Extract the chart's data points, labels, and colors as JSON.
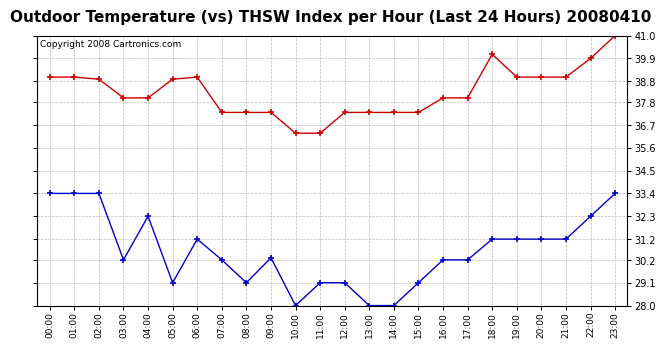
{
  "title": "Outdoor Temperature (vs) THSW Index per Hour (Last 24 Hours) 20080410",
  "copyright": "Copyright 2008 Cartronics.com",
  "hours": [
    "00:00",
    "01:00",
    "02:00",
    "03:00",
    "04:00",
    "05:00",
    "06:00",
    "07:00",
    "08:00",
    "09:00",
    "10:00",
    "11:00",
    "12:00",
    "13:00",
    "14:00",
    "15:00",
    "16:00",
    "17:00",
    "18:00",
    "19:00",
    "20:00",
    "21:00",
    "22:00",
    "23:00"
  ],
  "red_data": [
    39.0,
    39.0,
    38.9,
    38.0,
    38.0,
    38.9,
    39.0,
    37.3,
    37.3,
    37.3,
    36.3,
    36.3,
    37.3,
    37.3,
    37.3,
    37.3,
    38.0,
    38.0,
    40.1,
    39.0,
    39.0,
    39.0,
    39.9,
    41.0
  ],
  "blue_data": [
    33.4,
    33.4,
    33.4,
    30.2,
    32.3,
    29.1,
    31.2,
    30.2,
    29.1,
    30.3,
    28.0,
    29.1,
    29.1,
    28.0,
    28.0,
    29.1,
    30.2,
    30.2,
    31.2,
    31.2,
    31.2,
    31.2,
    32.3,
    33.4
  ],
  "ylim_min": 28.0,
  "ylim_max": 41.0,
  "yticks": [
    28.0,
    29.1,
    30.2,
    31.2,
    32.3,
    33.4,
    34.5,
    35.6,
    36.7,
    37.8,
    38.8,
    39.9,
    41.0
  ],
  "red_color": "#cc0000",
  "blue_color": "#0000cc",
  "background_color": "#ffffff",
  "grid_color": "#bbbbbb",
  "title_fontsize": 11,
  "copyright_fontsize": 6.5
}
